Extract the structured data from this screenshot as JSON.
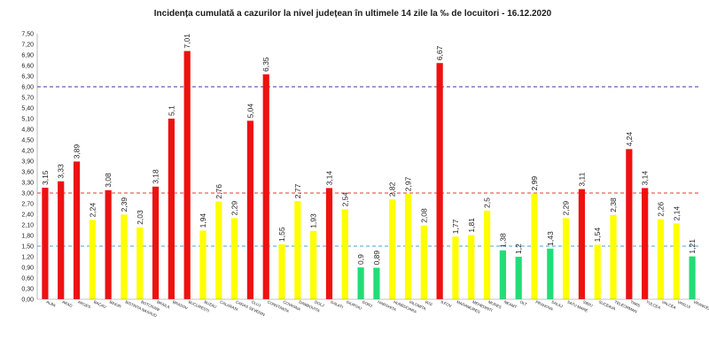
{
  "chart_data": {
    "type": "bar",
    "title": "Incidența cumulată a cazurilor la nivel județean în ultimele 14 zile    la ‰ de locuitori  - 16.12.2020",
    "xlabel": "",
    "ylabel": "",
    "ylim": [
      0,
      7.5
    ],
    "yticks": [
      "0,00",
      "0,30",
      "0,60",
      "0,90",
      "1,20",
      "1,50",
      "1,80",
      "2,10",
      "2,40",
      "2,70",
      "3,00",
      "3,30",
      "3,60",
      "3,90",
      "4,20",
      "4,50",
      "4,80",
      "5,10",
      "5,40",
      "5,70",
      "6,00",
      "6,30",
      "6,60",
      "6,90",
      "7,20",
      "7,50"
    ],
    "grid": false,
    "legend": "none",
    "categories": [
      "ALBA",
      "ARAD",
      "ARGES",
      "BACAU",
      "BIHOR",
      "BISTRITA NASAUD",
      "BOTOSANI",
      "BRAILA",
      "BRASOV",
      "BUCURESTI",
      "BUZAU",
      "CALARASI",
      "CARAS SEVERIN",
      "CLUJ",
      "CONSTANTA",
      "COVASNA",
      "DAMBOVITA",
      "DOLJ",
      "GALATI",
      "GIURGIU",
      "GORJ",
      "HARGHITA",
      "HUNEDOARA",
      "IALOMITA",
      "IASI",
      "ILFOV",
      "MARAMURES",
      "MEHEDINTI",
      "MURES",
      "NEAMT",
      "OLT",
      "PRAHOVA",
      "SALAJ",
      "SATU MARE",
      "SIBIU",
      "SUCEAVA",
      "TELEORMAN",
      "TIMIS",
      "TULCEA",
      "VALCEA",
      "VASLUI",
      "VRANCEA"
    ],
    "values": [
      3.15,
      3.33,
      3.89,
      2.24,
      3.08,
      2.39,
      2.03,
      3.18,
      5.1,
      7.01,
      1.94,
      2.76,
      2.29,
      5.04,
      6.35,
      1.55,
      2.77,
      1.93,
      3.14,
      2.54,
      0.9,
      0.89,
      2.82,
      2.97,
      2.08,
      6.67,
      1.77,
      1.81,
      2.5,
      1.38,
      1.2,
      2.99,
      1.43,
      2.29,
      3.11,
      1.54,
      2.38,
      4.24,
      3.14,
      2.26,
      2.14,
      1.21
    ],
    "value_labels": [
      "3,15",
      "3,33",
      "3,89",
      "2,24",
      "3,08",
      "2,39",
      "2,03",
      "3,18",
      "5,1",
      "7,01",
      "1,94",
      "2,76",
      "2,29",
      "5,04",
      "6,35",
      "1,55",
      "2,77",
      "1,93",
      "3,14",
      "2,54",
      "0,9",
      "0,89",
      "2,82",
      "2,97",
      "2,08",
      "6,67",
      "1,77",
      "1,81",
      "2,5",
      "1,38",
      "1,2",
      "2,99",
      "1,43",
      "2,29",
      "3,11",
      "1,54",
      "2,38",
      "4,24",
      "3,14",
      "2,26",
      "2,14",
      "1,21"
    ],
    "thresholds": [
      {
        "value": 1.5,
        "color": "#4aa3df"
      },
      {
        "value": 3.0,
        "color": "#e53935"
      },
      {
        "value": 6.0,
        "color": "#3a3aa8"
      }
    ],
    "colors": {
      "green": "#22dd77",
      "yellow": "#ffff00",
      "red": "#ee1111"
    }
  }
}
